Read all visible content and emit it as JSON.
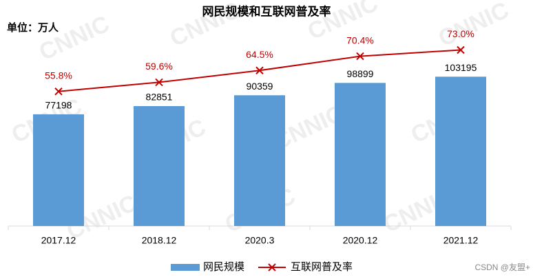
{
  "chart_data": {
    "type": "bar",
    "title": "网民规模和互联网普及率",
    "unit_label": "单位：万人",
    "watermark": "CNNIC",
    "credit": "CSDN @友盟+",
    "categories": [
      "2017.12",
      "2018.12",
      "2020.3",
      "2020.12",
      "2021.12"
    ],
    "ylim": [
      0,
      140000
    ],
    "y2lim": [
      0,
      84
    ],
    "series": [
      {
        "name": "网民规模",
        "color": "#5b9bd5",
        "values": [
          77198,
          82851,
          90359,
          98899,
          103195
        ]
      },
      {
        "name": "互联网普及率",
        "color": "#c00000",
        "axis": "y2",
        "type": "line",
        "values": [
          55.8,
          59.6,
          64.5,
          70.4,
          73.0
        ],
        "value_labels": [
          "55.8%",
          "59.6%",
          "64.5%",
          "70.4%",
          "73.0%"
        ]
      }
    ]
  }
}
